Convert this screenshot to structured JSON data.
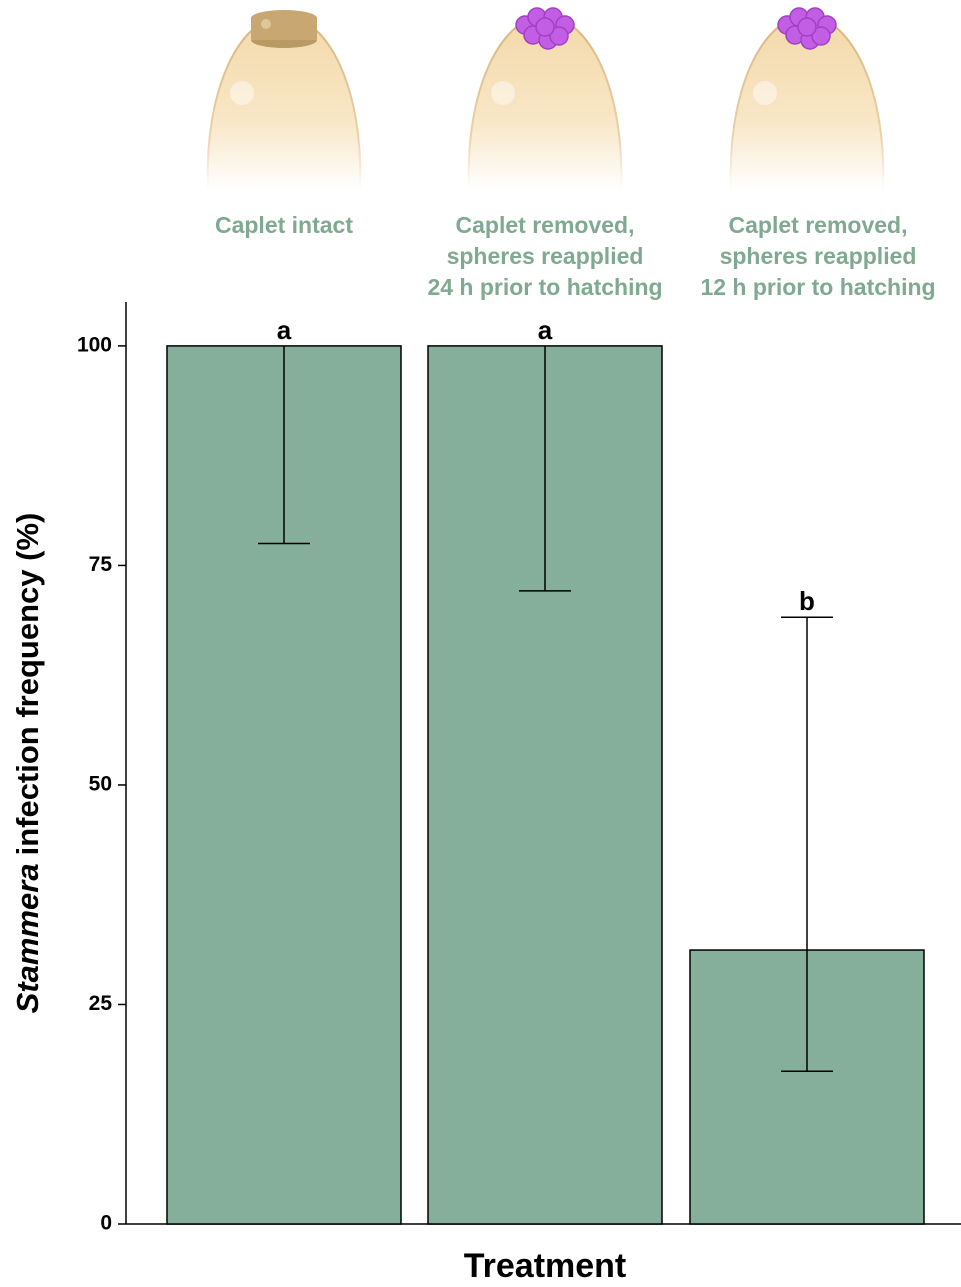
{
  "chart_data": {
    "type": "bar",
    "categories": [
      "Caplet intact",
      "Caplet removed,\nspheres reapplied\n24 h prior to hatching",
      "Caplet removed,\nspheres reapplied\n12 h prior to hatching"
    ],
    "values": [
      100,
      100,
      31.2
    ],
    "ci_low": [
      77.5,
      72.1,
      17.4
    ],
    "ci_high": [
      100,
      100,
      69.1
    ],
    "annotations": [
      "a",
      "a",
      "b"
    ],
    "color": "#85af9a",
    "label_color": "#7fa990",
    "ylabel": [
      "Stammera",
      "infection frequency (%)"
    ],
    "xlabel": "Treatment",
    "ylim": [
      0,
      105
    ],
    "yticks": [
      0,
      25,
      50,
      75,
      100
    ]
  }
}
